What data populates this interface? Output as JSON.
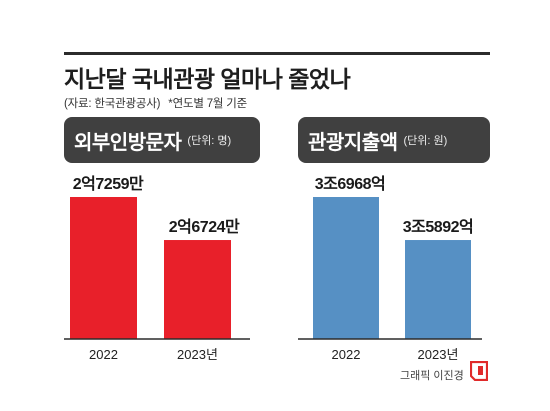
{
  "header": {
    "title": "지난달 국내관광 얼마나 줄었나",
    "source": "(자료: 한국관광공사)",
    "note": "*연도별 7월 기준"
  },
  "colors": {
    "left_bar": "#e8202a",
    "right_bar": "#5690c4",
    "pill_bg": "#404040",
    "rule": "#2b2b2b"
  },
  "chart_data": [
    {
      "type": "bar",
      "title": "외부인방문자",
      "unit": "(단위: 명)",
      "categories": [
        "2022",
        "2023년"
      ],
      "values": [
        272590000,
        267240000
      ],
      "data_labels": [
        "2억7259만",
        "2억6724만"
      ],
      "color": "#e8202a"
    },
    {
      "type": "bar",
      "title": "관광지출액",
      "unit": "(단위: 원)",
      "categories": [
        "2022",
        "2023년"
      ],
      "values": [
        3696800000000,
        3589200000000
      ],
      "data_labels": [
        "3조6968억",
        "3조5892억"
      ],
      "color": "#5690c4"
    }
  ],
  "credit": "그래픽 이진경"
}
